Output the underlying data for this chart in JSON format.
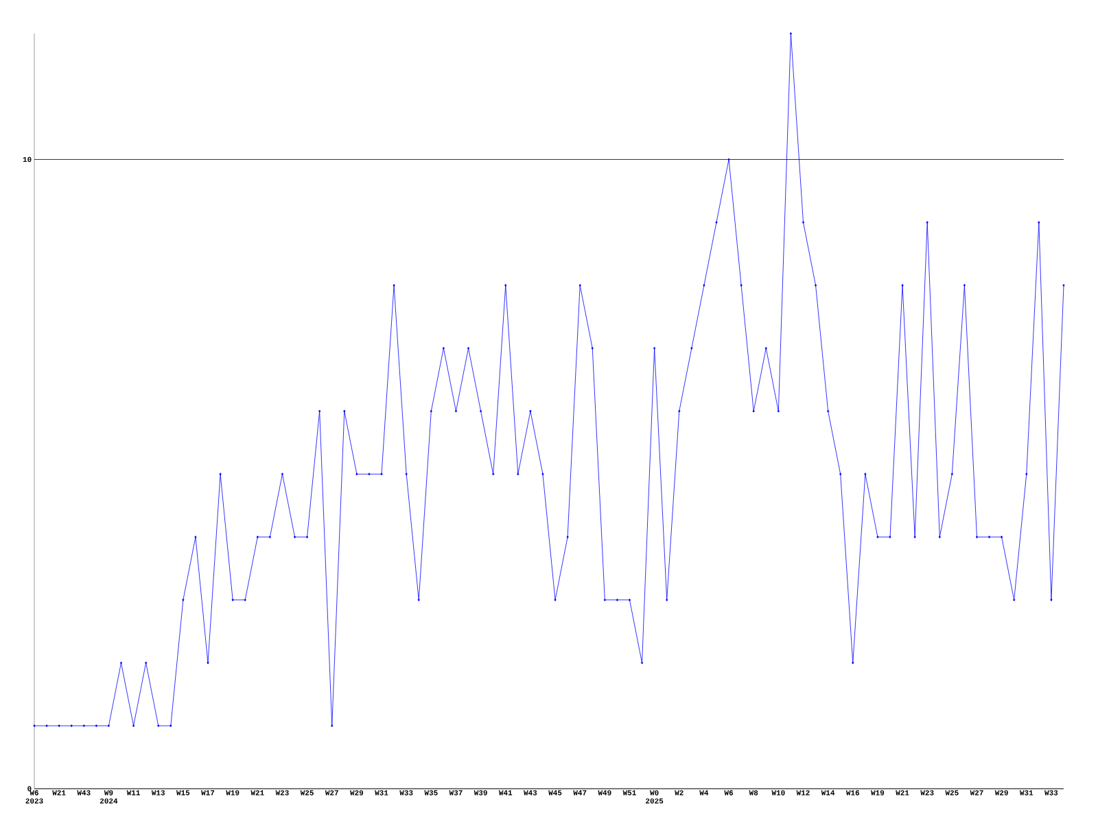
{
  "chart_data": {
    "type": "line",
    "color": "#0000ff",
    "marker": "diamond",
    "grid": "y",
    "categories": [
      "W6 2023",
      null,
      "W21",
      null,
      "W43",
      null,
      "W9 2024",
      null,
      "W11",
      null,
      "W13",
      null,
      "W15",
      null,
      "W17",
      null,
      "W19",
      null,
      "W21",
      null,
      "W23",
      null,
      "W25",
      null,
      "W27",
      null,
      "W29",
      null,
      "W31",
      null,
      "W33",
      null,
      "W35",
      null,
      "W37",
      null,
      "W39",
      null,
      "W41",
      null,
      "W43",
      null,
      "W45",
      null,
      "W47",
      null,
      "W49",
      null,
      "W51",
      null,
      "W0 2025",
      null,
      "W2",
      null,
      "W4",
      null,
      "W6",
      null,
      "W8",
      null,
      "W10",
      null,
      "W12",
      null,
      "W14",
      null,
      "W16",
      null,
      "W19",
      null,
      "W21",
      null,
      "W23",
      null,
      "W25",
      null,
      "W27",
      null,
      "W29",
      null,
      "W31",
      null,
      "W33",
      null
    ],
    "values": [
      1,
      1,
      1,
      1,
      1,
      1,
      1,
      2,
      1,
      2,
      1,
      1,
      3,
      4,
      2,
      5,
      3,
      3,
      4,
      4,
      5,
      4,
      4,
      6,
      1,
      6,
      5,
      5,
      5,
      8,
      5,
      3,
      6,
      7,
      6,
      7,
      6,
      5,
      8,
      5,
      6,
      5,
      3,
      4,
      8,
      7,
      3,
      3,
      3,
      2,
      7,
      3,
      6,
      7,
      8,
      9,
      10,
      8,
      6,
      7,
      6,
      12,
      9,
      8,
      6,
      5,
      2,
      5,
      4,
      4,
      8,
      4,
      9,
      4,
      5,
      8,
      4,
      4,
      4,
      3,
      5,
      9,
      3,
      8
    ],
    "ylim": [
      0,
      12
    ],
    "yticks": [
      0,
      10
    ]
  }
}
